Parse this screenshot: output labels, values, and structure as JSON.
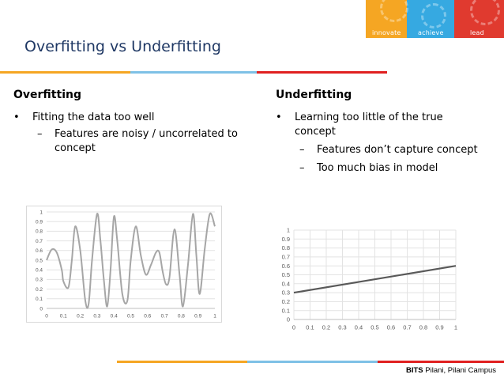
{
  "banner": {
    "labels": [
      "innovate",
      "achieve",
      "lead"
    ],
    "colors": [
      "#f5a623",
      "#36a9e1",
      "#e03a2f"
    ]
  },
  "slide": {
    "title": "Overfitting vs Underfitting"
  },
  "left": {
    "heading": "Overfitting",
    "bullet": "Fitting the data too well",
    "sub_line1": "Features are noisy / uncorrelated to",
    "sub_line2": "concept"
  },
  "right": {
    "heading": "Underfitting",
    "bullet_line1": "Learning too little of the true",
    "bullet_line2": "concept",
    "sub1": "Features don’t capture concept",
    "sub2": "Too much bias in model"
  },
  "bullet_symbol": "•",
  "dash_symbol": "–",
  "footer": {
    "brand": "BITS",
    "campus": " Pilani, Pilani Campus"
  },
  "chart_data": [
    {
      "type": "line",
      "xlim": [
        0,
        1
      ],
      "ylim": [
        0,
        1
      ],
      "x_ticks": [
        "0",
        "0.1",
        "0.2",
        "0.3",
        "0.4",
        "0.5",
        "0.6",
        "0.7",
        "0.8",
        "0.9",
        "1"
      ],
      "y_ticks": [
        "0",
        "0.1",
        "0.2",
        "0.3",
        "0.4",
        "0.5",
        "0.6",
        "0.7",
        "0.8",
        "0.9",
        "1"
      ],
      "grid": true,
      "line_color": "#a6a6a6",
      "x": [
        0,
        0.03,
        0.06,
        0.09,
        0.1,
        0.13,
        0.15,
        0.17,
        0.2,
        0.23,
        0.25,
        0.27,
        0.3,
        0.32,
        0.34,
        0.36,
        0.38,
        0.4,
        0.42,
        0.45,
        0.48,
        0.5,
        0.53,
        0.56,
        0.59,
        0.62,
        0.65,
        0.67,
        0.69,
        0.71,
        0.73,
        0.76,
        0.79,
        0.81,
        0.84,
        0.87,
        0.89,
        0.91,
        0.94,
        0.97,
        1
      ],
      "y": [
        0.5,
        0.61,
        0.58,
        0.4,
        0.28,
        0.22,
        0.5,
        0.85,
        0.6,
        0.08,
        0.05,
        0.5,
        0.98,
        0.7,
        0.3,
        0.02,
        0.4,
        0.95,
        0.7,
        0.15,
        0.08,
        0.5,
        0.85,
        0.55,
        0.35,
        0.45,
        0.58,
        0.58,
        0.38,
        0.25,
        0.32,
        0.82,
        0.35,
        0.02,
        0.45,
        0.98,
        0.55,
        0.15,
        0.62,
        0.98,
        0.85
      ]
    },
    {
      "type": "line",
      "xlim": [
        0,
        1
      ],
      "ylim": [
        0,
        1
      ],
      "x_ticks": [
        "0",
        "0.1",
        "0.2",
        "0.3",
        "0.4",
        "0.5",
        "0.6",
        "0.7",
        "0.8",
        "0.9",
        "1"
      ],
      "y_ticks": [
        "0",
        "0.1",
        "0.2",
        "0.3",
        "0.4",
        "0.5",
        "0.6",
        "0.7",
        "0.8",
        "0.9",
        "1"
      ],
      "grid": true,
      "line_color": "#595959",
      "x": [
        0,
        1
      ],
      "y": [
        0.3,
        0.6
      ]
    }
  ]
}
